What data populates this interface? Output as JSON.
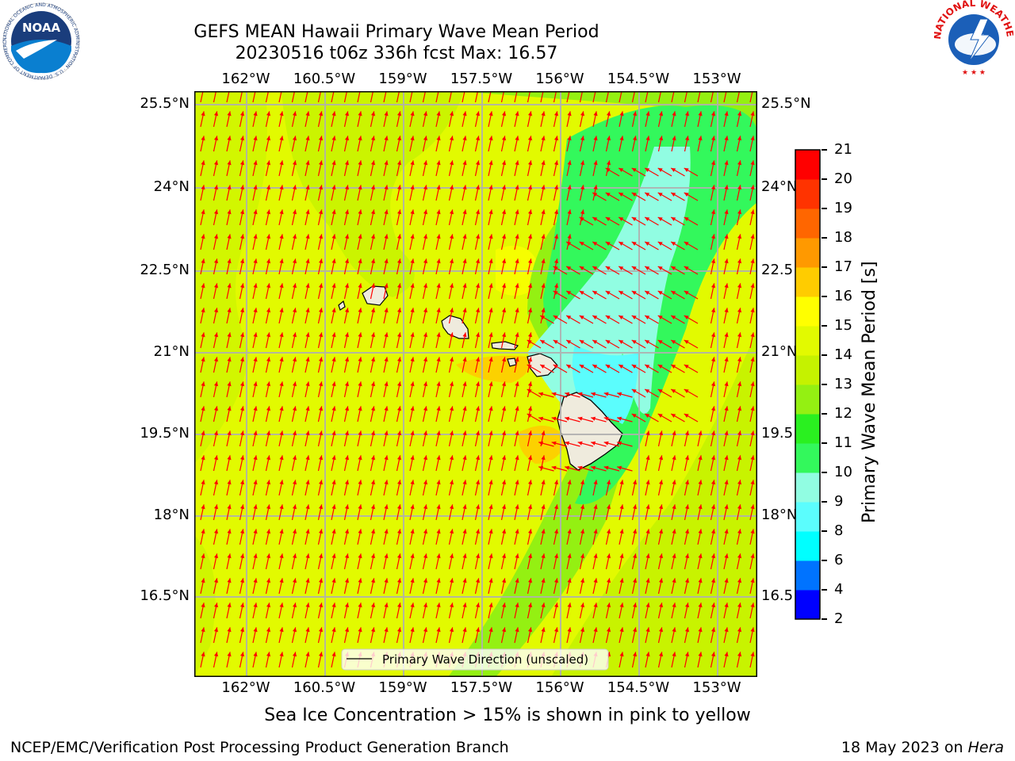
{
  "title": {
    "line1": "GEFS MEAN Hawaii Primary Wave Mean Period",
    "line2": "20230516 t06z 336h fcst   Max: 16.57"
  },
  "map": {
    "lon_ticks": [
      "162°W",
      "160.5°W",
      "159°W",
      "157.5°W",
      "156°W",
      "154.5°W",
      "153°W"
    ],
    "lat_ticks": [
      "25.5°N",
      "24°N",
      "22.5°N",
      "21°N",
      "19.5°N",
      "18°N",
      "16.5°N"
    ],
    "lat_ticks_right": [
      "25.5°N",
      "24°N",
      "22.5",
      "21°N",
      "19.5",
      "18°N",
      "16.5"
    ],
    "legend_label": "Primary Wave Direction (unscaled)",
    "arrow_color": "#ff0000",
    "land_color": "#efebdd",
    "lon_range": [
      -163,
      -152.25
    ],
    "lat_range": [
      15.25,
      25.75
    ]
  },
  "colorbar": {
    "title": "Primary Wave Mean Period [s]",
    "labels": [
      "2",
      "4",
      "6",
      "8",
      "9",
      "10",
      "11",
      "12",
      "13",
      "14",
      "15",
      "16",
      "17",
      "18",
      "19",
      "20",
      "21"
    ],
    "colors": [
      "#0000ff",
      "#0073ff",
      "#00ffff",
      "#5bfdfd",
      "#91fde2",
      "#33f85c",
      "#2af020",
      "#94f012",
      "#c5f200",
      "#e2fa00",
      "#ffff00",
      "#ffcc00",
      "#ff9900",
      "#ff6600",
      "#ff3300",
      "#ff0000"
    ]
  },
  "note": "Sea Ice Concentration > 15% is shown in pink to yellow",
  "footer": {
    "left": "NCEP/EMC/Verification Post Processing Product Generation Branch",
    "right_date": "18 May 2023 on",
    "right_host": "Hera"
  },
  "logos": {
    "noaa_text": "NOAA",
    "noaa_ring": "NATIONAL OCEANIC AND ATMOSPHERIC ADMINISTRATION · U.S. DEPARTMENT OF COMMERCE",
    "nws_ring": "NATIONAL WEATHER SERVICE"
  }
}
